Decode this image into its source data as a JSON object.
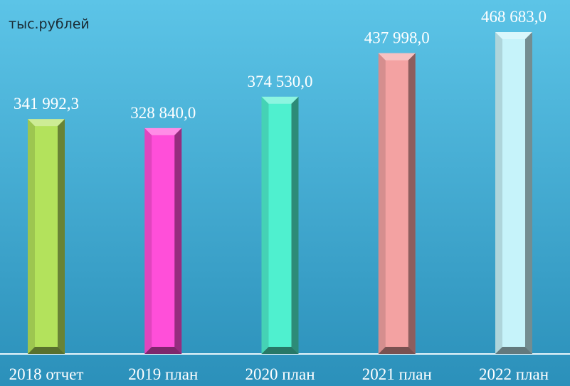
{
  "chart_data": {
    "type": "bar",
    "subtitle": "тыс.рублей",
    "categories": [
      "2018 отчет",
      "2019 план",
      "2020 план",
      "2021 план",
      "2022 план"
    ],
    "values": [
      341992.3,
      328840.0,
      374530.0,
      437998.0,
      468683.0
    ],
    "value_labels": [
      "341 992,3",
      "328 840,0",
      "374 530,0",
      "437 998,0",
      "468 683,0"
    ],
    "colors": [
      "#b3e25c",
      "#ff4fd9",
      "#4ff0cf",
      "#f3a2a2",
      "#c6f3fa"
    ]
  }
}
